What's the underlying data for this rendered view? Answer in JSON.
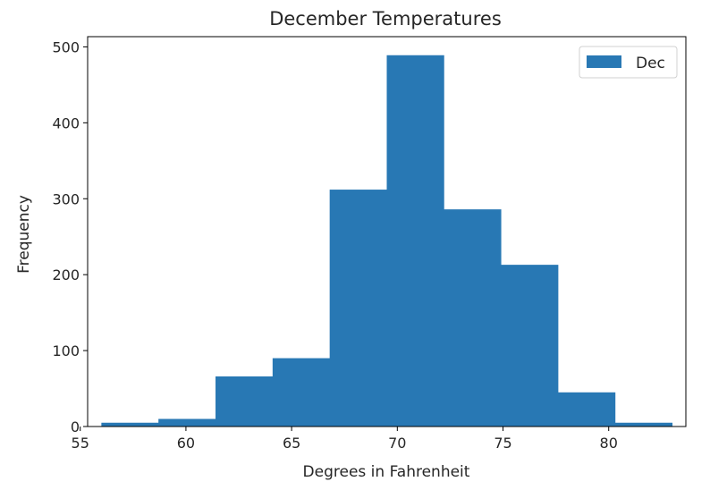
{
  "chart_data": {
    "type": "bar",
    "title": "December Temperatures",
    "xlabel": "Degrees in Fahrenheit",
    "ylabel": "Frequency",
    "bin_edges": [
      56.0,
      58.7,
      61.4,
      64.1,
      66.8,
      69.5,
      72.2,
      74.9,
      77.6,
      80.3,
      83.0
    ],
    "series": [
      {
        "name": "Dec",
        "values": [
          5,
          10,
          66,
          90,
          312,
          489,
          286,
          213,
          45,
          5
        ],
        "color": "#2878b4"
      }
    ],
    "xlim": [
      55.35,
      83.65
    ],
    "ylim": [
      0,
      513.45
    ],
    "xticks": [
      55,
      60,
      65,
      70,
      75,
      80
    ],
    "yticks": [
      0,
      100,
      200,
      300,
      400,
      500
    ],
    "grid": false,
    "legend": "upper right"
  }
}
